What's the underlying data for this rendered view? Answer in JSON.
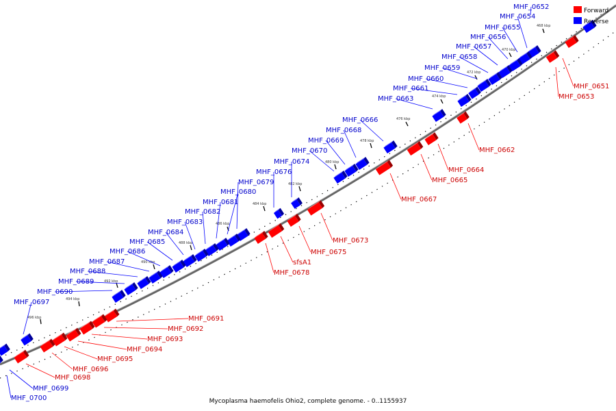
{
  "caption": "Mycoplasma haemofelis Ohio2, complete genome. - 0..1155937",
  "legend": [
    {
      "label": "Forward",
      "color": "#ff0000"
    },
    {
      "label": "Reverse",
      "color": "#0000ff"
    }
  ],
  "colors": {
    "forward": "#ff0000",
    "reverse": "#0000ff",
    "backbone": "#666666",
    "ticks": "#000000"
  },
  "ticks": [
    "468 kbp",
    "470 kbp",
    "472 kbp",
    "474 kbp",
    "476 kbp",
    "478 kbp",
    "480 kbp",
    "482 kbp",
    "484 kbp",
    "486 kbp",
    "488 kbp",
    "490 kbp",
    "492 kbp",
    "494 kbp",
    "496 kbp"
  ],
  "genes": [
    {
      "name": "MHF_0651",
      "strand": "forward"
    },
    {
      "name": "MHF_0652",
      "strand": "reverse"
    },
    {
      "name": "MHF_0653",
      "strand": "forward"
    },
    {
      "name": "MHF_0654",
      "strand": "reverse"
    },
    {
      "name": "MHF_0655",
      "strand": "reverse"
    },
    {
      "name": "MHF_0656",
      "strand": "reverse"
    },
    {
      "name": "MHF_0657",
      "strand": "reverse"
    },
    {
      "name": "MHF_0658",
      "strand": "reverse"
    },
    {
      "name": "MHF_0659",
      "strand": "reverse"
    },
    {
      "name": "MHF_0660",
      "strand": "reverse"
    },
    {
      "name": "MHF_0661",
      "strand": "reverse"
    },
    {
      "name": "MHF_0662",
      "strand": "forward"
    },
    {
      "name": "MHF_0663",
      "strand": "reverse"
    },
    {
      "name": "MHF_0664",
      "strand": "forward"
    },
    {
      "name": "MHF_0665",
      "strand": "forward"
    },
    {
      "name": "MHF_0666",
      "strand": "reverse"
    },
    {
      "name": "MHF_0667",
      "strand": "forward"
    },
    {
      "name": "MHF_0668",
      "strand": "reverse"
    },
    {
      "name": "MHF_0669",
      "strand": "reverse"
    },
    {
      "name": "MHF_0670",
      "strand": "reverse"
    },
    {
      "name": "MHF_0673",
      "strand": "forward"
    },
    {
      "name": "MHF_0674",
      "strand": "reverse"
    },
    {
      "name": "MHF_0675",
      "strand": "forward"
    },
    {
      "name": "MHF_0676",
      "strand": "reverse"
    },
    {
      "name": "sfsA1",
      "strand": "forward"
    },
    {
      "name": "MHF_0678",
      "strand": "forward"
    },
    {
      "name": "MHF_0679",
      "strand": "reverse"
    },
    {
      "name": "MHF_0680",
      "strand": "reverse"
    },
    {
      "name": "MHF_0681",
      "strand": "reverse"
    },
    {
      "name": "MHF_0682",
      "strand": "reverse"
    },
    {
      "name": "MHF_0683",
      "strand": "reverse"
    },
    {
      "name": "MHF_0684",
      "strand": "reverse"
    },
    {
      "name": "MHF_0685",
      "strand": "reverse"
    },
    {
      "name": "MHF_0686",
      "strand": "reverse"
    },
    {
      "name": "MHF_0687",
      "strand": "reverse"
    },
    {
      "name": "MHF_0688",
      "strand": "reverse"
    },
    {
      "name": "MHF_0689",
      "strand": "reverse"
    },
    {
      "name": "MHF_0690",
      "strand": "reverse"
    },
    {
      "name": "MHF_0691",
      "strand": "forward"
    },
    {
      "name": "MHF_0692",
      "strand": "forward"
    },
    {
      "name": "MHF_0693",
      "strand": "forward"
    },
    {
      "name": "MHF_0694",
      "strand": "forward"
    },
    {
      "name": "MHF_0695",
      "strand": "forward"
    },
    {
      "name": "MHF_0696",
      "strand": "forward"
    },
    {
      "name": "MHF_0697",
      "strand": "reverse"
    },
    {
      "name": "MHF_0698",
      "strand": "forward"
    },
    {
      "name": "MHF_0699",
      "strand": "reverse"
    },
    {
      "name": "MHF_0700",
      "strand": "reverse"
    }
  ]
}
